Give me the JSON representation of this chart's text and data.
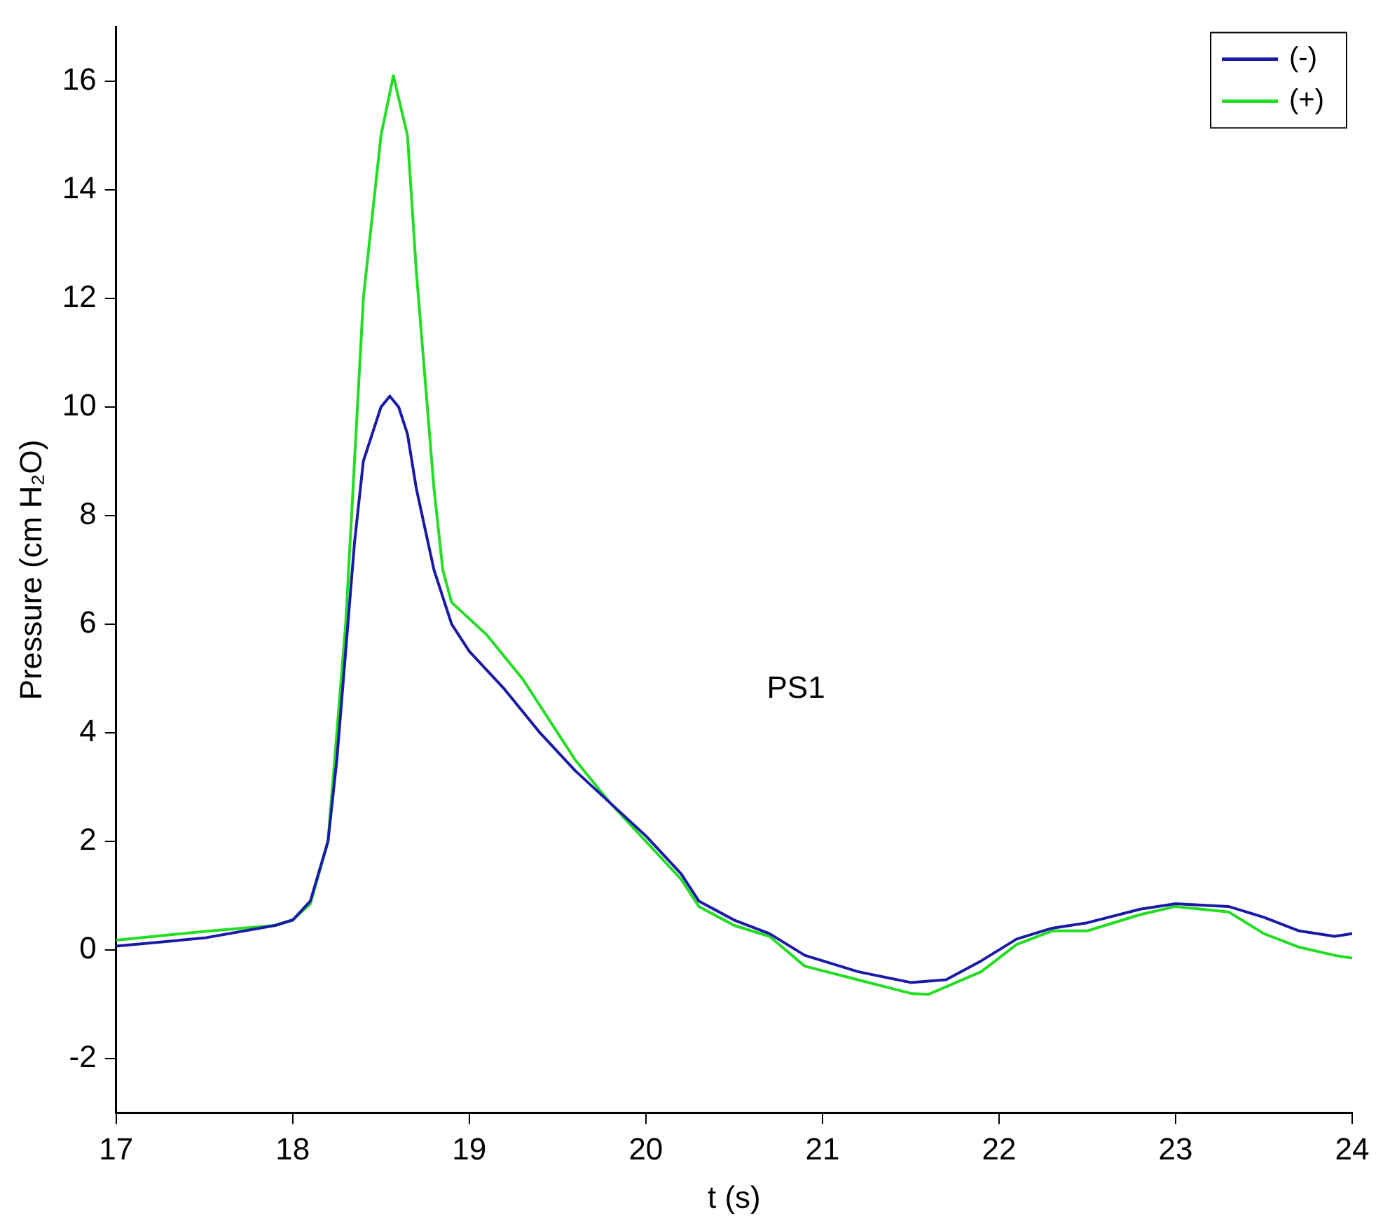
{
  "chart_data": {
    "type": "line",
    "xlabel": "t (s)",
    "ylabel": "Pressure (cm H₂O)",
    "annotations": [
      "PS1"
    ],
    "xlim": [
      17,
      24
    ],
    "xticks": [
      17,
      18,
      19,
      20,
      21,
      22,
      23,
      24
    ],
    "ylim": [
      -3,
      17
    ],
    "yticks": [
      -2,
      0,
      2,
      4,
      6,
      8,
      10,
      12,
      14,
      16
    ],
    "grid": false,
    "legend": "top right",
    "marker": "none",
    "line_style": "solid",
    "series": [
      {
        "name": "(-)",
        "color": "#1a1aa6",
        "x": [
          17,
          17.5,
          17.9,
          18,
          18.1,
          18.2,
          18.25,
          18.3,
          18.35,
          18.4,
          18.5,
          18.55,
          18.6,
          18.65,
          18.7,
          18.8,
          18.9,
          19,
          19.2,
          19.4,
          19.6,
          19.8,
          20,
          20.2,
          20.3,
          20.5,
          20.7,
          20.9,
          21.2,
          21.5,
          21.7,
          21.9,
          22.1,
          22.3,
          22.5,
          22.8,
          23,
          23.3,
          23.5,
          23.7,
          23.9,
          24
        ],
        "values": [
          0.07,
          0.22,
          0.45,
          0.55,
          0.9,
          2,
          3.5,
          5.5,
          7.5,
          9,
          10,
          10.2,
          10,
          9.5,
          8.5,
          7,
          6,
          5.5,
          4.8,
          4,
          3.3,
          2.7,
          2.1,
          1.4,
          0.9,
          0.55,
          0.3,
          -0.1,
          -0.4,
          -0.6,
          -0.55,
          -0.2,
          0.2,
          0.4,
          0.5,
          0.75,
          0.85,
          0.8,
          0.6,
          0.35,
          0.25,
          0.3
        ]
      },
      {
        "name": "(+)",
        "color": "#22dd22",
        "x": [
          17,
          17.5,
          17.9,
          18,
          18.1,
          18.2,
          18.3,
          18.4,
          18.5,
          18.57,
          18.65,
          18.7,
          18.8,
          18.85,
          18.9,
          19.1,
          19.3,
          19.4,
          19.6,
          19.8,
          20,
          20.2,
          20.3,
          20.5,
          20.7,
          20.9,
          21.2,
          21.5,
          21.6,
          21.9,
          22.1,
          22.3,
          22.5,
          22.8,
          23,
          23.3,
          23.5,
          23.7,
          23.9,
          24
        ],
        "values": [
          0.18,
          0.34,
          0.45,
          0.55,
          0.85,
          2,
          6,
          12,
          15,
          16.1,
          15,
          12.5,
          8.5,
          7,
          6.4,
          5.8,
          5,
          4.5,
          3.5,
          2.7,
          2,
          1.3,
          0.8,
          0.45,
          0.25,
          -0.3,
          -0.55,
          -0.8,
          -0.82,
          -0.4,
          0.1,
          0.35,
          0.35,
          0.65,
          0.8,
          0.7,
          0.3,
          0.05,
          -0.1,
          -0.15
        ]
      }
    ]
  }
}
